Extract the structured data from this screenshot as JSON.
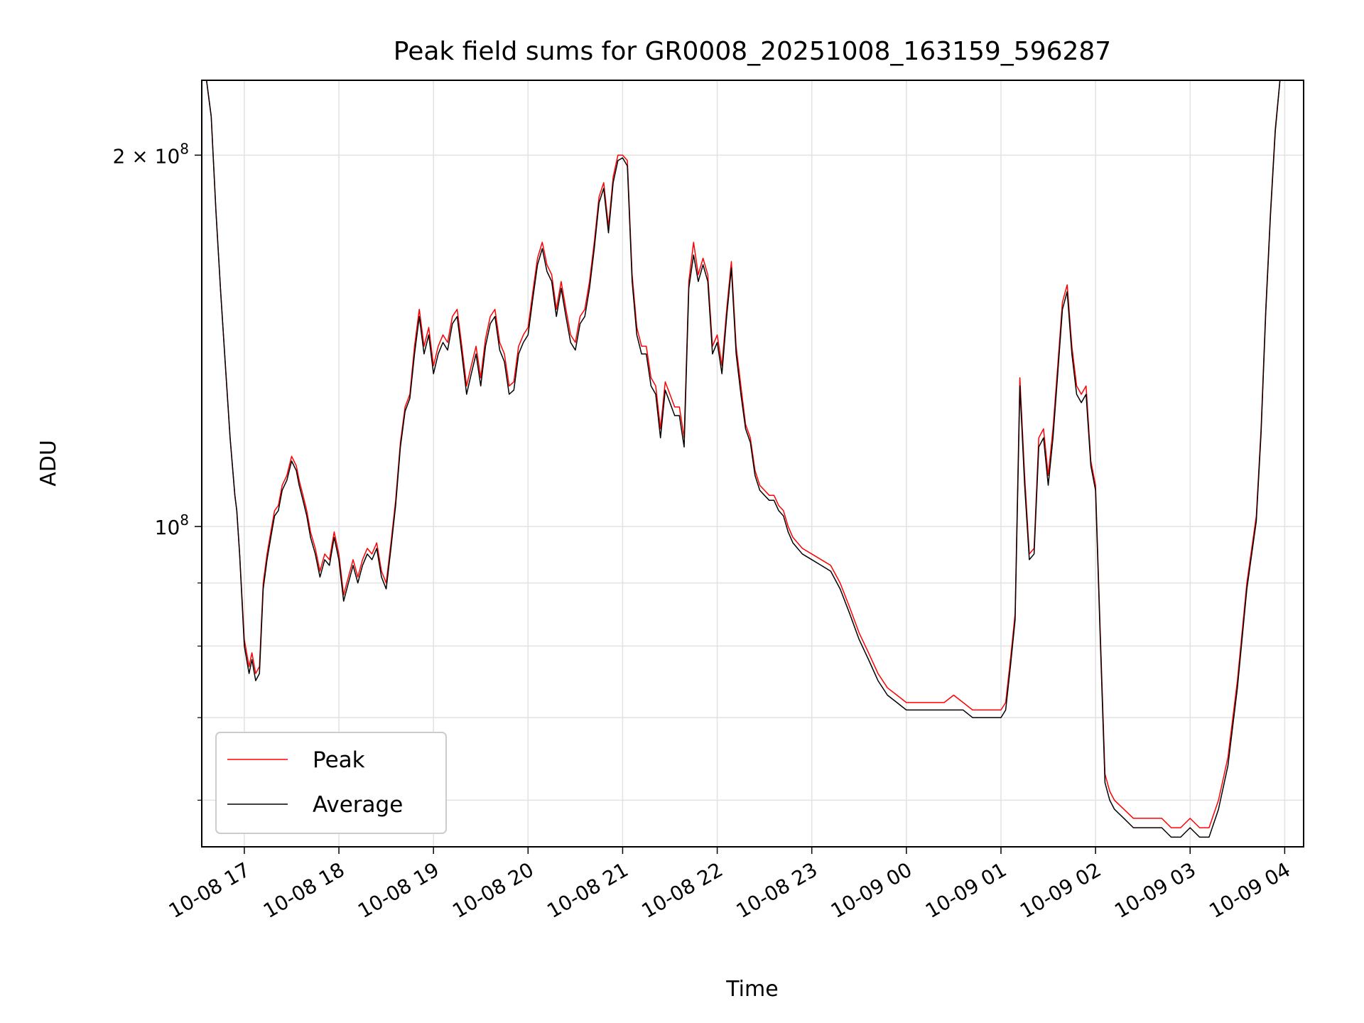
{
  "chart_data": {
    "type": "line",
    "title": "Peak field sums for GR0008_20251008_163159_596287",
    "xlabel": "Time",
    "ylabel": "ADU",
    "yscale": "log",
    "ylim": [
      55000000,
      230000000
    ],
    "xlim": [
      16.55,
      28.2
    ],
    "grid": true,
    "legend": {
      "position": "lower-left",
      "entries": [
        "Peak",
        "Average"
      ]
    },
    "x_ticks": [
      {
        "value": 17,
        "label": "10-08 17"
      },
      {
        "value": 18,
        "label": "10-08 18"
      },
      {
        "value": 19,
        "label": "10-08 19"
      },
      {
        "value": 20,
        "label": "10-08 20"
      },
      {
        "value": 21,
        "label": "10-08 21"
      },
      {
        "value": 22,
        "label": "10-08 22"
      },
      {
        "value": 23,
        "label": "10-08 23"
      },
      {
        "value": 24,
        "label": "10-09 00"
      },
      {
        "value": 25,
        "label": "10-09 01"
      },
      {
        "value": 26,
        "label": "10-09 02"
      },
      {
        "value": 27,
        "label": "10-09 03"
      },
      {
        "value": 28,
        "label": "10-09 04"
      }
    ],
    "y_major_ticks": [
      {
        "value": 100000000,
        "base": "10",
        "exp": "8",
        "mantissa": ""
      },
      {
        "value": 200000000,
        "base": "10",
        "exp": "8",
        "mantissa": "2 × "
      }
    ],
    "y_minor_ticks": [
      60000000,
      70000000,
      80000000,
      90000000
    ],
    "x_hours": [
      16.55,
      16.6,
      16.65,
      16.7,
      16.75,
      16.8,
      16.85,
      16.9,
      16.92,
      16.95,
      17.0,
      17.05,
      17.08,
      17.12,
      17.16,
      17.2,
      17.24,
      17.28,
      17.32,
      17.36,
      17.4,
      17.45,
      17.5,
      17.55,
      17.58,
      17.62,
      17.66,
      17.7,
      17.75,
      17.8,
      17.85,
      17.9,
      17.95,
      18.0,
      18.05,
      18.1,
      18.15,
      18.2,
      18.25,
      18.3,
      18.35,
      18.4,
      18.45,
      18.5,
      18.55,
      18.6,
      18.65,
      18.7,
      18.75,
      18.8,
      18.85,
      18.9,
      18.95,
      19.0,
      19.05,
      19.1,
      19.15,
      19.2,
      19.25,
      19.3,
      19.35,
      19.4,
      19.45,
      19.5,
      19.55,
      19.6,
      19.65,
      19.7,
      19.75,
      19.8,
      19.85,
      19.9,
      19.95,
      20.0,
      20.05,
      20.1,
      20.15,
      20.2,
      20.25,
      20.3,
      20.35,
      20.4,
      20.45,
      20.5,
      20.55,
      20.6,
      20.65,
      20.7,
      20.75,
      20.8,
      20.85,
      20.9,
      20.95,
      21.0,
      21.05,
      21.1,
      21.15,
      21.2,
      21.25,
      21.3,
      21.35,
      21.4,
      21.45,
      21.5,
      21.55,
      21.6,
      21.65,
      21.7,
      21.75,
      21.8,
      21.85,
      21.9,
      21.95,
      22.0,
      22.05,
      22.1,
      22.15,
      22.2,
      22.25,
      22.3,
      22.35,
      22.4,
      22.45,
      22.5,
      22.55,
      22.6,
      22.65,
      22.7,
      22.75,
      22.8,
      22.9,
      23.0,
      23.1,
      23.2,
      23.3,
      23.4,
      23.5,
      23.6,
      23.7,
      23.8,
      23.9,
      24.0,
      24.1,
      24.2,
      24.3,
      24.4,
      24.5,
      24.6,
      24.7,
      24.8,
      24.9,
      25.0,
      25.05,
      25.1,
      25.15,
      25.2,
      25.25,
      25.3,
      25.35,
      25.4,
      25.45,
      25.5,
      25.55,
      25.6,
      25.65,
      25.7,
      25.75,
      25.8,
      25.85,
      25.9,
      25.95,
      26.0,
      26.05,
      26.1,
      26.15,
      26.2,
      26.3,
      26.4,
      26.5,
      26.6,
      26.7,
      26.8,
      26.9,
      27.0,
      27.1,
      27.2,
      27.3,
      27.4,
      27.5,
      27.6,
      27.7,
      27.75,
      27.8,
      27.85,
      27.9,
      27.95,
      28.0,
      28.05,
      28.1,
      28.2
    ],
    "series": [
      {
        "name": "Peak",
        "color": "#ff0000",
        "values": [
          230,
          230,
          215,
          180,
          155,
          135,
          118,
          106,
          103,
          95,
          81,
          77,
          79,
          76,
          77,
          90,
          95,
          99,
          103,
          104,
          108,
          110,
          114,
          112,
          109,
          106,
          103,
          99,
          96,
          92,
          95,
          94,
          99,
          95,
          88,
          91,
          94,
          91,
          94,
          96,
          95,
          97,
          92,
          90,
          97,
          105,
          117,
          125,
          128,
          140,
          150,
          140,
          145,
          135,
          140,
          143,
          141,
          148,
          150,
          140,
          130,
          135,
          140,
          132,
          142,
          148,
          150,
          141,
          138,
          130,
          131,
          140,
          143,
          145,
          155,
          165,
          170,
          163,
          160,
          150,
          158,
          150,
          143,
          141,
          148,
          150,
          158,
          170,
          185,
          190,
          175,
          192,
          200,
          200,
          198,
          160,
          145,
          140,
          140,
          132,
          130,
          120,
          131,
          128,
          125,
          125,
          118,
          158,
          170,
          160,
          165,
          160,
          140,
          143,
          135,
          150,
          164,
          140,
          130,
          121,
          118,
          111,
          108,
          107,
          106,
          106,
          104,
          103,
          100,
          98,
          96,
          95,
          94,
          93,
          90,
          86,
          82,
          79,
          76,
          74,
          73,
          72,
          72,
          72,
          72,
          72,
          73,
          72,
          71,
          71,
          71,
          71,
          72,
          78,
          85,
          132,
          110,
          95,
          96,
          118,
          120,
          110,
          120,
          135,
          152,
          157,
          140,
          130,
          128,
          130,
          113,
          108,
          82,
          63,
          61,
          60,
          59,
          58,
          58,
          58,
          58,
          57,
          57,
          58,
          57,
          57,
          60,
          65,
          75,
          90,
          102,
          120,
          150,
          180,
          210,
          230,
          230
        ]
      },
      {
        "name": "Average",
        "color": "#000000",
        "values": [
          230,
          230,
          215,
          180,
          155,
          135,
          118,
          106,
          103,
          95,
          80,
          76,
          78,
          75,
          76,
          89,
          94,
          98,
          102,
          103,
          107,
          109,
          113,
          111,
          108,
          105,
          102,
          98,
          95,
          91,
          94,
          93,
          98,
          94,
          87,
          90,
          93,
          90,
          93,
          95,
          94,
          96,
          91,
          89,
          96,
          104,
          116,
          124,
          127,
          138,
          148,
          138,
          143,
          133,
          138,
          141,
          139,
          146,
          148,
          138,
          128,
          133,
          138,
          130,
          140,
          146,
          148,
          139,
          136,
          128,
          129,
          138,
          141,
          143,
          153,
          163,
          168,
          161,
          158,
          148,
          156,
          148,
          141,
          139,
          146,
          148,
          156,
          168,
          183,
          188,
          173,
          190,
          198,
          199,
          196,
          158,
          143,
          138,
          138,
          130,
          128,
          118,
          129,
          126,
          123,
          123,
          116,
          156,
          166,
          158,
          163,
          158,
          138,
          141,
          133,
          148,
          162,
          138,
          128,
          120,
          117,
          110,
          107,
          106,
          105,
          105,
          103,
          102,
          99,
          97,
          95,
          94,
          93,
          92,
          89,
          85,
          81,
          78,
          75,
          73,
          72,
          71,
          71,
          71,
          71,
          71,
          71,
          71,
          70,
          70,
          70,
          70,
          71,
          77,
          84,
          130,
          108,
          94,
          95,
          116,
          118,
          108,
          118,
          133,
          150,
          155,
          138,
          128,
          126,
          128,
          112,
          107,
          81,
          62,
          60,
          59,
          58,
          57,
          57,
          57,
          57,
          56,
          56,
          57,
          56,
          56,
          59,
          64,
          74,
          89,
          101,
          119,
          149,
          179,
          209,
          230,
          230
        ]
      }
    ],
    "value_unit_note": "series values in millions of ADU"
  }
}
